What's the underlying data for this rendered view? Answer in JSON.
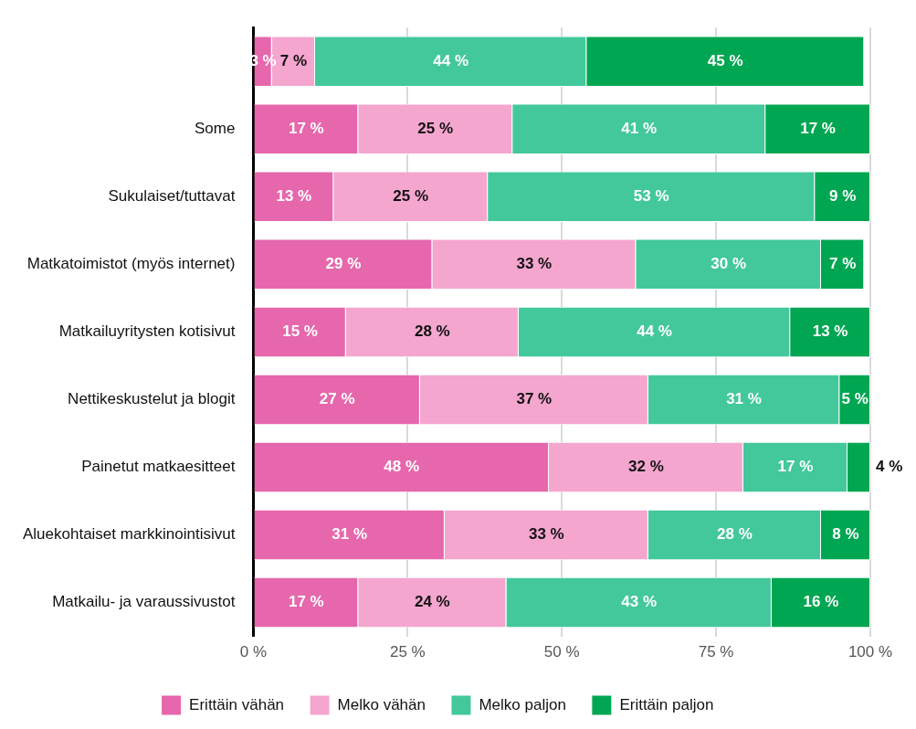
{
  "chart_data": {
    "type": "bar",
    "orientation": "horizontal",
    "stacked": true,
    "categories": [
      null,
      "Some",
      "Sukulaiset/tuttavat",
      "Matkatoimistot (myös internet)",
      "Matkailuyritysten kotisivut",
      "Nettikeskustelut ja blogit",
      "Painetut matkaesitteet",
      "Aluekohtaiset markkinointisivut",
      "Matkailu- ja varaussivustot"
    ],
    "series": [
      {
        "name": "Erittäin vähän",
        "color": "#e667ac",
        "values": [
          3,
          17,
          13,
          29,
          15,
          27,
          47.9,
          31,
          17
        ],
        "value_labels": [
          "3 %",
          "17 %",
          "13 %",
          "29 %",
          "15 %",
          "27 %",
          "48 %",
          "31 %",
          "17 %"
        ]
      },
      {
        "name": "Melko vähän",
        "color": "#f4a6cf",
        "values": [
          7,
          25,
          25,
          33,
          28,
          37,
          31.5,
          33,
          24
        ],
        "value_labels": [
          "7 %",
          "25 %",
          "25 %",
          "33 %",
          "28 %",
          "37 %",
          "32 %",
          "33 %",
          "24 %"
        ]
      },
      {
        "name": "Melko paljon",
        "color": "#43c89b",
        "values": [
          44,
          41,
          53,
          30,
          44,
          31,
          16.9,
          28,
          43
        ],
        "value_labels": [
          "44 %",
          "41 %",
          "53 %",
          "30 %",
          "44 %",
          "31 %",
          "17 %",
          "28 %",
          "43 %"
        ]
      },
      {
        "name": "Erittäin paljon",
        "color": "#00a651",
        "values": [
          45,
          17,
          9,
          7,
          13,
          5,
          3.7,
          8,
          16
        ],
        "value_labels": [
          "45 %",
          "17 %",
          "9 %",
          "7 %",
          "13 %",
          "5 %",
          "4 %",
          "8 %",
          "16 %"
        ]
      }
    ],
    "xlim": [
      0,
      100
    ],
    "xticks": [
      {
        "value": 0,
        "label": "0 %"
      },
      {
        "value": 25,
        "label": "25 %"
      },
      {
        "value": 50,
        "label": "50 %"
      },
      {
        "value": 75,
        "label": "75 %"
      },
      {
        "value": 100,
        "label": "100 %"
      }
    ],
    "grid": "x",
    "legend": "bottom"
  }
}
